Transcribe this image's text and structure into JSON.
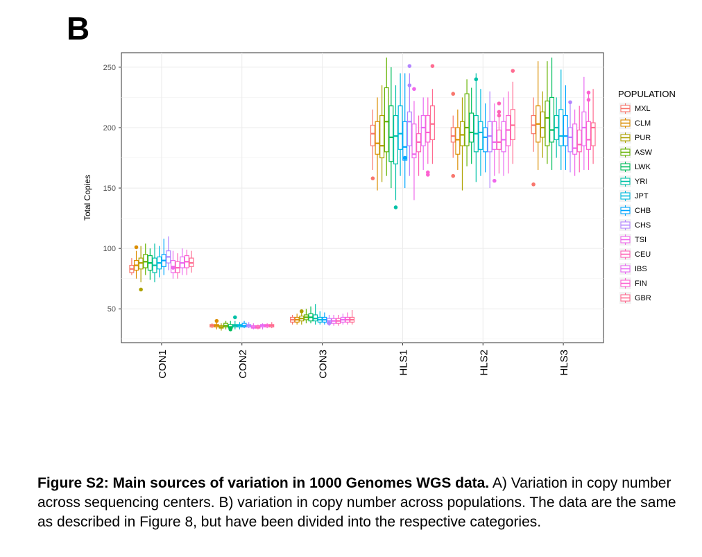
{
  "panel_label": "B",
  "caption": {
    "bold": "Figure S2: Main sources of variation in 1000 Genomes WGS data.",
    "text": " A) Variation in copy number across sequencing centers. B) variation in copy number across populations. The data are the same as described in Figure 8, but have been divided into the respective categories."
  },
  "chart_data": {
    "type": "boxplot",
    "ylabel": "Total Copies",
    "xlabel": "",
    "ylim": [
      22,
      262
    ],
    "yticks": [
      50,
      100,
      150,
      200,
      250
    ],
    "grid": true,
    "legend_position": "right",
    "legend_title": "POPULATION",
    "categories": [
      "CON1",
      "CON2",
      "CON3",
      "HLS1",
      "HLS2",
      "HLS3"
    ],
    "populations": [
      {
        "name": "MXL",
        "color": "#f8766d"
      },
      {
        "name": "CLM",
        "color": "#db8e00"
      },
      {
        "name": "PUR",
        "color": "#aea200"
      },
      {
        "name": "ASW",
        "color": "#64b200"
      },
      {
        "name": "LWK",
        "color": "#00bd5c"
      },
      {
        "name": "YRI",
        "color": "#00c1a7"
      },
      {
        "name": "JPT",
        "color": "#00bade"
      },
      {
        "name": "CHB",
        "color": "#00a6ff"
      },
      {
        "name": "CHS",
        "color": "#b385ff"
      },
      {
        "name": "TSI",
        "color": "#ef67eb"
      },
      {
        "name": "CEU",
        "color": "#ff63b6"
      },
      {
        "name": "IBS",
        "color": "#e76bf3"
      },
      {
        "name": "FIN",
        "color": "#fd61d1"
      },
      {
        "name": "GBR",
        "color": "#ff6c91"
      }
    ],
    "boxes": [
      [
        {
          "lo": 78,
          "q1": 80,
          "med": 83,
          "q3": 86,
          "hi": 92,
          "out": []
        },
        {
          "lo": 75,
          "q1": 82,
          "med": 86,
          "q3": 90,
          "hi": 98,
          "out": [
            101
          ]
        },
        {
          "lo": 72,
          "q1": 83,
          "med": 88,
          "q3": 92,
          "hi": 102,
          "out": [
            66
          ]
        },
        {
          "lo": 78,
          "q1": 84,
          "med": 89,
          "q3": 95,
          "hi": 104,
          "out": []
        },
        {
          "lo": 74,
          "q1": 82,
          "med": 88,
          "q3": 94,
          "hi": 100,
          "out": []
        },
        {
          "lo": 72,
          "q1": 80,
          "med": 86,
          "q3": 92,
          "hi": 104,
          "out": []
        },
        {
          "lo": 76,
          "q1": 83,
          "med": 88,
          "q3": 93,
          "hi": 102,
          "out": []
        },
        {
          "lo": 78,
          "q1": 85,
          "med": 90,
          "q3": 95,
          "hi": 108,
          "out": []
        },
        {
          "lo": 82,
          "q1": 88,
          "med": 93,
          "q3": 98,
          "hi": 110,
          "out": []
        },
        {
          "lo": 75,
          "q1": 80,
          "med": 85,
          "q3": 90,
          "hi": 98,
          "out": [
            84
          ]
        },
        {
          "lo": 75,
          "q1": 80,
          "med": 84,
          "q3": 89,
          "hi": 96,
          "out": []
        },
        {
          "lo": 78,
          "q1": 84,
          "med": 88,
          "q3": 93,
          "hi": 100,
          "out": []
        },
        {
          "lo": 78,
          "q1": 84,
          "med": 89,
          "q3": 94,
          "hi": 99,
          "out": []
        },
        {
          "lo": 80,
          "q1": 85,
          "med": 88,
          "q3": 92,
          "hi": 98,
          "out": []
        }
      ],
      [
        {
          "lo": 34,
          "q1": 35,
          "med": 36,
          "q3": 37,
          "hi": 38,
          "out": []
        },
        {
          "lo": 33,
          "q1": 35,
          "med": 36,
          "q3": 37,
          "hi": 39,
          "out": [
            40
          ]
        },
        {
          "lo": 32,
          "q1": 34,
          "med": 35,
          "q3": 36,
          "hi": 38,
          "out": []
        },
        {
          "lo": 33,
          "q1": 35,
          "med": 36,
          "q3": 38,
          "hi": 40,
          "out": []
        },
        {
          "lo": 32,
          "q1": 34,
          "med": 35,
          "q3": 37,
          "hi": 40,
          "out": [
            33
          ]
        },
        {
          "lo": 33,
          "q1": 35,
          "med": 36,
          "q3": 37,
          "hi": 40,
          "out": [
            43
          ]
        },
        {
          "lo": 33,
          "q1": 35,
          "med": 36,
          "q3": 37,
          "hi": 39,
          "out": []
        },
        {
          "lo": 34,
          "q1": 35,
          "med": 36,
          "q3": 38,
          "hi": 40,
          "out": []
        },
        {
          "lo": 34,
          "q1": 35,
          "med": 36,
          "q3": 37,
          "hi": 39,
          "out": []
        },
        {
          "lo": 33,
          "q1": 34,
          "med": 35,
          "q3": 36,
          "hi": 38,
          "out": []
        },
        {
          "lo": 33,
          "q1": 34,
          "med": 35,
          "q3": 36,
          "hi": 37,
          "out": []
        },
        {
          "lo": 33,
          "q1": 35,
          "med": 36,
          "q3": 37,
          "hi": 38,
          "out": []
        },
        {
          "lo": 34,
          "q1": 35,
          "med": 36,
          "q3": 37,
          "hi": 38,
          "out": []
        },
        {
          "lo": 34,
          "q1": 35,
          "med": 36,
          "q3": 37,
          "hi": 39,
          "out": []
        }
      ],
      [
        {
          "lo": 37,
          "q1": 39,
          "med": 41,
          "q3": 43,
          "hi": 45,
          "out": []
        },
        {
          "lo": 37,
          "q1": 39,
          "med": 41,
          "q3": 43,
          "hi": 46,
          "out": []
        },
        {
          "lo": 37,
          "q1": 40,
          "med": 42,
          "q3": 44,
          "hi": 47,
          "out": [
            48
          ]
        },
        {
          "lo": 38,
          "q1": 41,
          "med": 43,
          "q3": 45,
          "hi": 50,
          "out": []
        },
        {
          "lo": 38,
          "q1": 40,
          "med": 43,
          "q3": 46,
          "hi": 52,
          "out": []
        },
        {
          "lo": 37,
          "q1": 40,
          "med": 42,
          "q3": 45,
          "hi": 54,
          "out": []
        },
        {
          "lo": 37,
          "q1": 39,
          "med": 41,
          "q3": 43,
          "hi": 48,
          "out": []
        },
        {
          "lo": 37,
          "q1": 39,
          "med": 41,
          "q3": 43,
          "hi": 47,
          "out": []
        },
        {
          "lo": 36,
          "q1": 38,
          "med": 40,
          "q3": 42,
          "hi": 45,
          "out": [
            38
          ]
        },
        {
          "lo": 36,
          "q1": 38,
          "med": 40,
          "q3": 42,
          "hi": 45,
          "out": []
        },
        {
          "lo": 36,
          "q1": 38,
          "med": 40,
          "q3": 42,
          "hi": 45,
          "out": []
        },
        {
          "lo": 37,
          "q1": 39,
          "med": 41,
          "q3": 43,
          "hi": 46,
          "out": []
        },
        {
          "lo": 37,
          "q1": 39,
          "med": 41,
          "q3": 43,
          "hi": 47,
          "out": []
        },
        {
          "lo": 37,
          "q1": 39,
          "med": 41,
          "q3": 43,
          "hi": 49,
          "out": []
        }
      ],
      [
        {
          "lo": 165,
          "q1": 185,
          "med": 195,
          "q3": 202,
          "hi": 215,
          "out": [
            158
          ]
        },
        {
          "lo": 148,
          "q1": 178,
          "med": 187,
          "q3": 205,
          "hi": 225,
          "out": []
        },
        {
          "lo": 155,
          "q1": 175,
          "med": 185,
          "q3": 210,
          "hi": 235,
          "out": []
        },
        {
          "lo": 160,
          "q1": 180,
          "med": 205,
          "q3": 233,
          "hi": 258,
          "out": []
        },
        {
          "lo": 150,
          "q1": 172,
          "med": 192,
          "q3": 218,
          "hi": 250,
          "out": []
        },
        {
          "lo": 140,
          "q1": 170,
          "med": 193,
          "q3": 210,
          "hi": 235,
          "out": [
            134
          ]
        },
        {
          "lo": 160,
          "q1": 182,
          "med": 195,
          "q3": 218,
          "hi": 245,
          "out": []
        },
        {
          "lo": 150,
          "q1": 173,
          "med": 184,
          "q3": 205,
          "hi": 245,
          "out": [
            175
          ]
        },
        {
          "lo": 160,
          "q1": 185,
          "med": 205,
          "q3": 213,
          "hi": 245,
          "out": [
            251,
            235
          ]
        },
        {
          "lo": 140,
          "q1": 175,
          "med": 178,
          "q3": 203,
          "hi": 222,
          "out": [
            232
          ]
        },
        {
          "lo": 160,
          "q1": 180,
          "med": 188,
          "q3": 195,
          "hi": 210,
          "out": []
        },
        {
          "lo": 165,
          "q1": 185,
          "med": 200,
          "q3": 210,
          "hi": 225,
          "out": []
        },
        {
          "lo": 170,
          "q1": 188,
          "med": 196,
          "q3": 210,
          "hi": 225,
          "out": [
            163,
            161
          ]
        },
        {
          "lo": 170,
          "q1": 190,
          "med": 203,
          "q3": 218,
          "hi": 232,
          "out": [
            251
          ]
        }
      ],
      [
        {
          "lo": 175,
          "q1": 188,
          "med": 193,
          "q3": 200,
          "hi": 210,
          "out": [
            228,
            160
          ]
        },
        {
          "lo": 165,
          "q1": 178,
          "med": 190,
          "q3": 200,
          "hi": 215,
          "out": []
        },
        {
          "lo": 148,
          "q1": 185,
          "med": 194,
          "q3": 205,
          "hi": 225,
          "out": []
        },
        {
          "lo": 168,
          "q1": 185,
          "med": 200,
          "q3": 228,
          "hi": 240,
          "out": []
        },
        {
          "lo": 170,
          "q1": 188,
          "med": 196,
          "q3": 212,
          "hi": 233,
          "out": []
        },
        {
          "lo": 155,
          "q1": 180,
          "med": 195,
          "q3": 210,
          "hi": 245,
          "out": [
            240
          ]
        },
        {
          "lo": 160,
          "q1": 182,
          "med": 196,
          "q3": 205,
          "hi": 232,
          "out": []
        },
        {
          "lo": 163,
          "q1": 180,
          "med": 192,
          "q3": 200,
          "hi": 220,
          "out": []
        },
        {
          "lo": 150,
          "q1": 180,
          "med": 193,
          "q3": 205,
          "hi": 230,
          "out": []
        },
        {
          "lo": 160,
          "q1": 182,
          "med": 188,
          "q3": 205,
          "hi": 220,
          "out": [
            156
          ]
        },
        {
          "lo": 162,
          "q1": 182,
          "med": 188,
          "q3": 198,
          "hi": 213,
          "out": [
            220,
            213,
            210
          ]
        },
        {
          "lo": 160,
          "q1": 180,
          "med": 190,
          "q3": 205,
          "hi": 225,
          "out": []
        },
        {
          "lo": 162,
          "q1": 185,
          "med": 198,
          "q3": 210,
          "hi": 230,
          "out": []
        },
        {
          "lo": 170,
          "q1": 190,
          "med": 202,
          "q3": 215,
          "hi": 238,
          "out": [
            247
          ]
        }
      ],
      [
        {
          "lo": 180,
          "q1": 195,
          "med": 202,
          "q3": 210,
          "hi": 225,
          "out": [
            153
          ]
        },
        {
          "lo": 165,
          "q1": 188,
          "med": 203,
          "q3": 218,
          "hi": 255,
          "out": []
        },
        {
          "lo": 175,
          "q1": 192,
          "med": 200,
          "q3": 213,
          "hi": 230,
          "out": []
        },
        {
          "lo": 170,
          "q1": 185,
          "med": 208,
          "q3": 222,
          "hi": 255,
          "out": []
        },
        {
          "lo": 165,
          "q1": 188,
          "med": 198,
          "q3": 225,
          "hi": 258,
          "out": []
        },
        {
          "lo": 175,
          "q1": 190,
          "med": 200,
          "q3": 210,
          "hi": 225,
          "out": []
        },
        {
          "lo": 165,
          "q1": 185,
          "med": 193,
          "q3": 215,
          "hi": 248,
          "out": []
        },
        {
          "lo": 165,
          "q1": 185,
          "med": 193,
          "q3": 210,
          "hi": 235,
          "out": []
        },
        {
          "lo": 163,
          "q1": 180,
          "med": 192,
          "q3": 200,
          "hi": 222,
          "out": [
            221
          ]
        },
        {
          "lo": 160,
          "q1": 178,
          "med": 183,
          "q3": 203,
          "hi": 215,
          "out": []
        },
        {
          "lo": 163,
          "q1": 180,
          "med": 186,
          "q3": 198,
          "hi": 218,
          "out": []
        },
        {
          "lo": 165,
          "q1": 185,
          "med": 200,
          "q3": 213,
          "hi": 242,
          "out": []
        },
        {
          "lo": 165,
          "q1": 182,
          "med": 190,
          "q3": 205,
          "hi": 228,
          "out": [
            229,
            223
          ]
        },
        {
          "lo": 170,
          "q1": 185,
          "med": 200,
          "q3": 204,
          "hi": 232,
          "out": []
        }
      ]
    ]
  }
}
